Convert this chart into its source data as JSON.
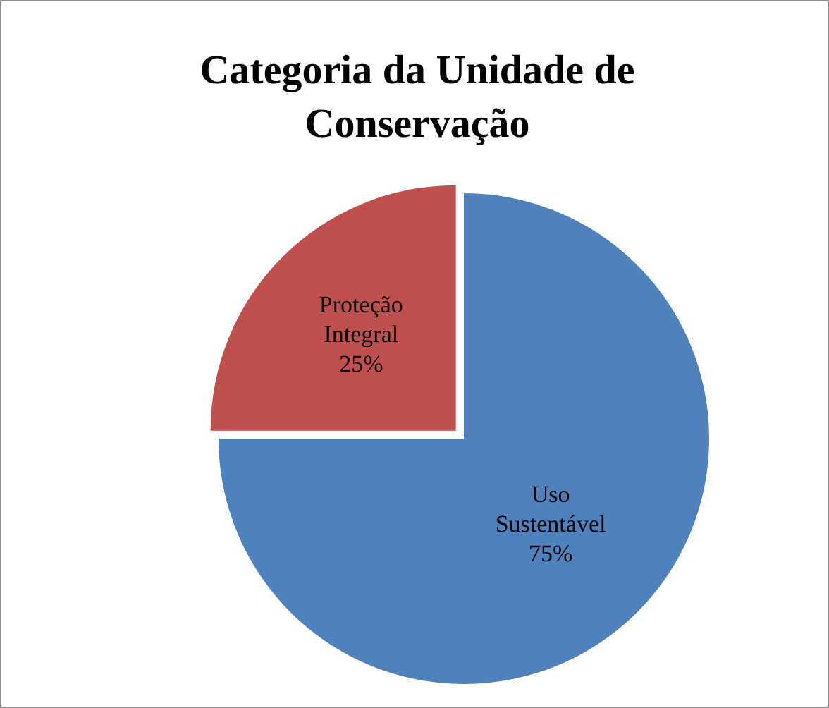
{
  "chart_data": {
    "type": "pie",
    "title": "Categoria da Unidade de Conservação",
    "categories": [
      "Proteção Integral",
      "Uso Sustentável"
    ],
    "values": [
      25,
      75
    ],
    "colors": [
      "#c0504d",
      "#4f81bd"
    ],
    "value_labels": [
      "25%",
      "75%"
    ],
    "legend": false
  }
}
